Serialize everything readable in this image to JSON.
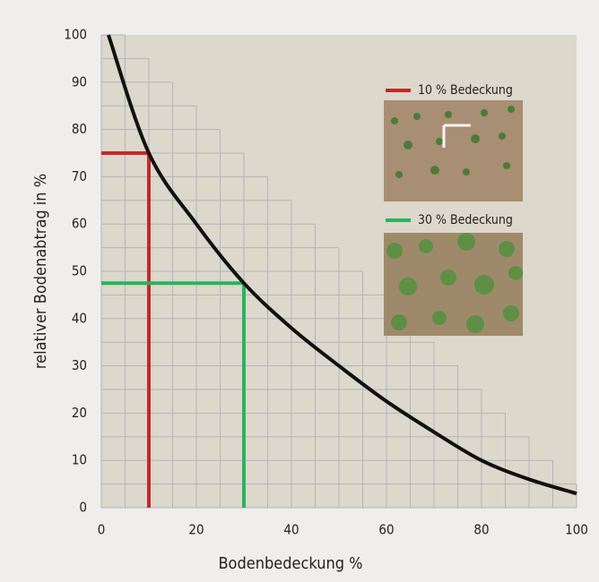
{
  "chart_data": {
    "type": "line",
    "xlabel": "Bodenbedeckung %",
    "ylabel": "relativer Bodenabtrag in %",
    "xlim": [
      0,
      100
    ],
    "xticks": [
      0,
      20,
      40,
      60,
      80,
      100
    ],
    "ylim": [
      0,
      100
    ],
    "yticks": [
      0,
      10,
      20,
      30,
      40,
      50,
      60,
      70,
      80,
      90,
      100
    ],
    "grid": true,
    "grid_step": 5,
    "curve": {
      "color": "#111111",
      "x": [
        1.5,
        10,
        20,
        30,
        40,
        50,
        60,
        70,
        80,
        90,
        100
      ],
      "values": [
        100,
        75,
        60,
        47.5,
        38,
        30,
        22.5,
        16,
        10,
        6,
        3
      ]
    },
    "markers": [
      {
        "x": 10,
        "y": 75,
        "color": "#c8262c",
        "label": "10 % Bedeckung"
      },
      {
        "x": 30,
        "y": 47.5,
        "color": "#2bb35a",
        "label": "30 % Bedeckung"
      }
    ]
  }
}
